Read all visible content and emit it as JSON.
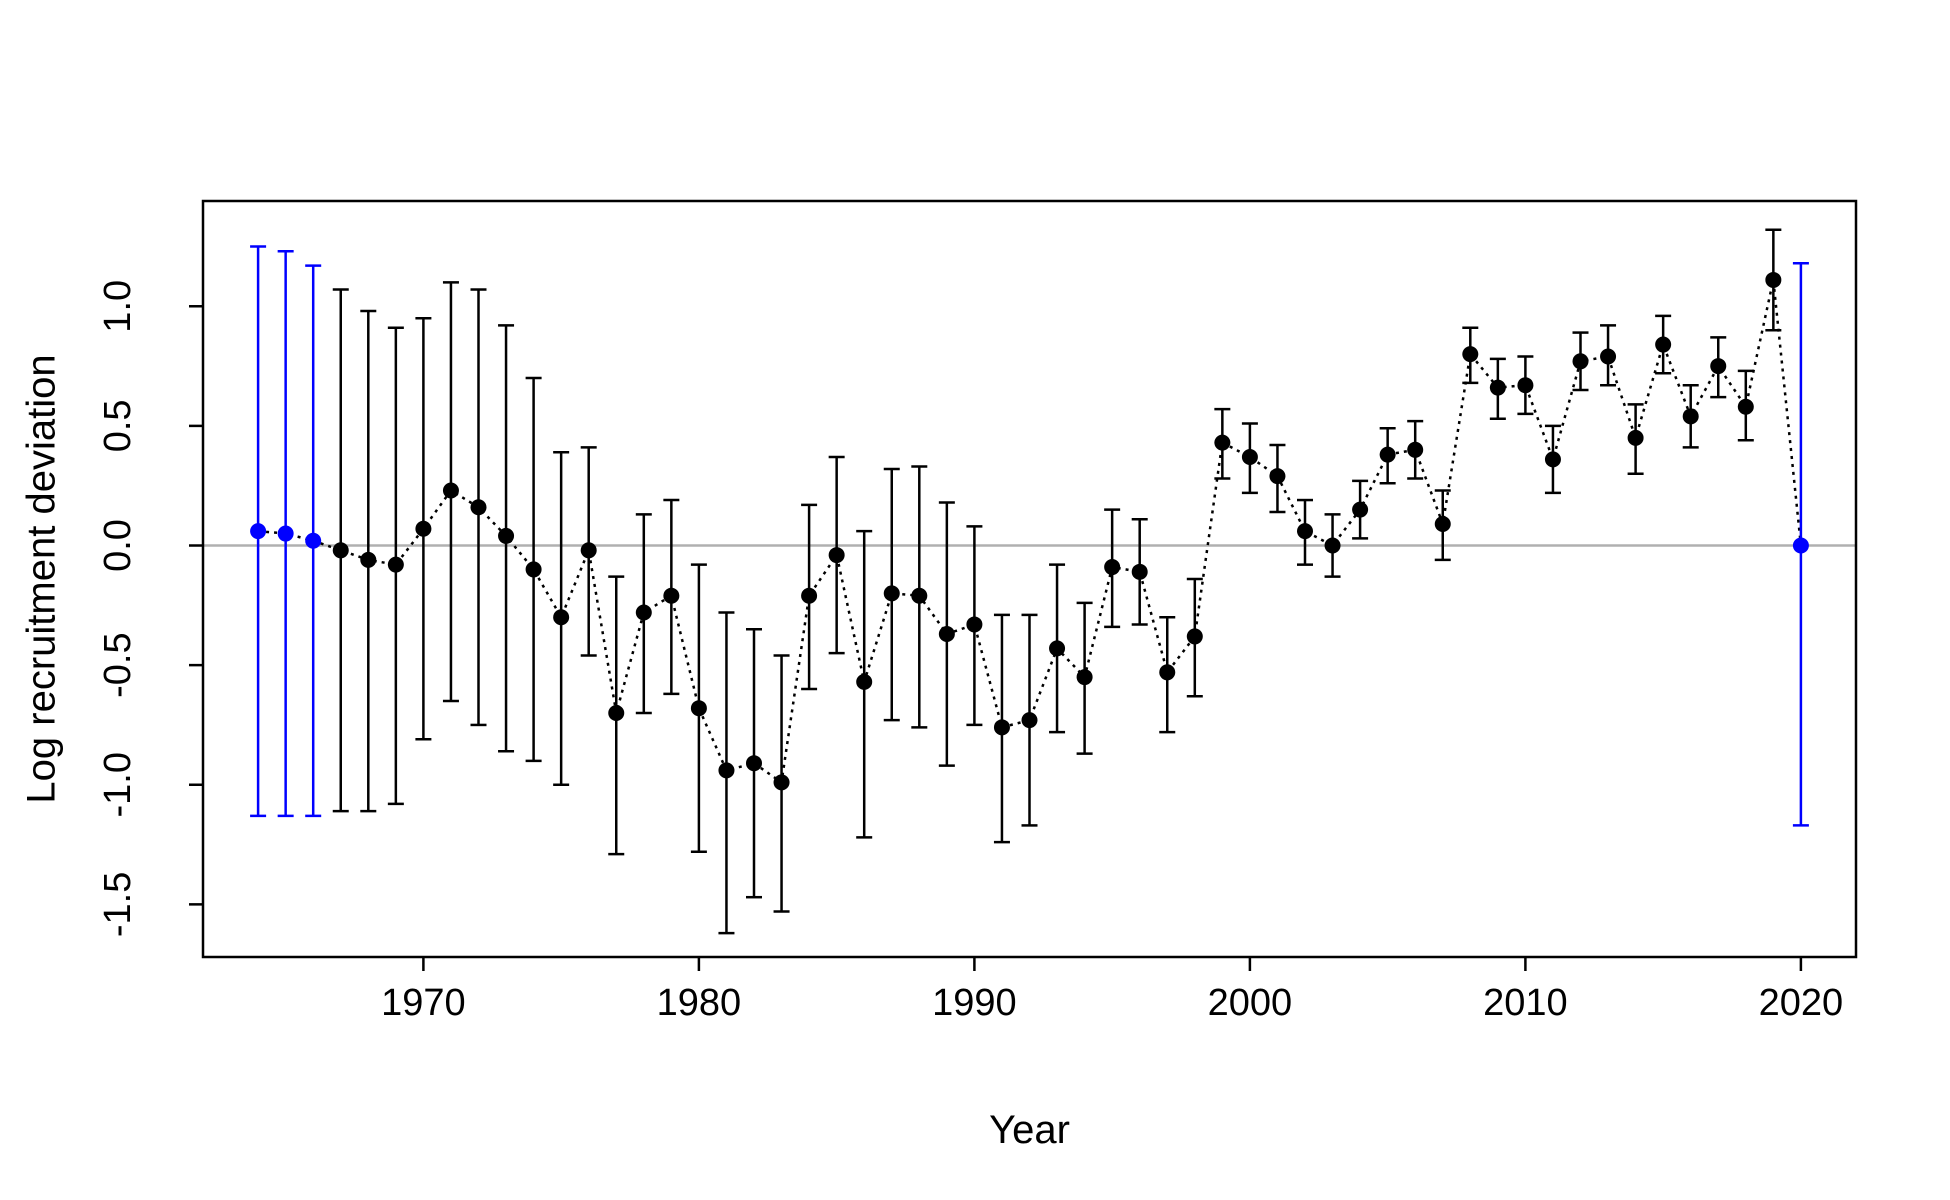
{
  "chart_data": {
    "type": "scatter",
    "title": "",
    "xlabel": "Year",
    "ylabel": "Log recruitment deviation",
    "xlim": [
      1962,
      2022
    ],
    "ylim": [
      -1.72,
      1.44
    ],
    "xticks": [
      1970,
      1980,
      1990,
      2000,
      2010,
      2020
    ],
    "yticks": [
      -1.5,
      -1.0,
      -0.5,
      0.0,
      0.5,
      1.0
    ],
    "xtick_labels": [
      "1970",
      "1980",
      "1990",
      "2000",
      "2010",
      "2020"
    ],
    "ytick_labels": [
      "-1.5",
      "-1.0",
      "-0.5",
      "0.0",
      "0.5",
      "1.0"
    ],
    "reference_line": 0,
    "grid": false,
    "colors": {
      "main": "#000000",
      "early_late": "#0000ff",
      "reference": "#b0b0b0"
    },
    "series": [
      {
        "name": "",
        "color": "#000000",
        "line": "dotted",
        "x": [
          1964,
          1965,
          1966,
          1967,
          1968,
          1969,
          1970,
          1971,
          1972,
          1973,
          1974,
          1975,
          1976,
          1977,
          1978,
          1979,
          1980,
          1981,
          1982,
          1983,
          1984,
          1985,
          1986,
          1987,
          1988,
          1989,
          1990,
          1991,
          1992,
          1993,
          1994,
          1995,
          1996,
          1997,
          1998,
          1999,
          2000,
          2001,
          2002,
          2003,
          2004,
          2005,
          2006,
          2007,
          2008,
          2009,
          2010,
          2011,
          2012,
          2013,
          2014,
          2015,
          2016,
          2017,
          2018,
          2019,
          2020
        ],
        "y": [
          0.06,
          0.05,
          0.02,
          -0.02,
          -0.06,
          -0.08,
          0.07,
          0.23,
          0.16,
          0.04,
          -0.1,
          -0.3,
          -0.02,
          -0.7,
          -0.28,
          -0.21,
          -0.68,
          -0.94,
          -0.91,
          -0.99,
          -0.21,
          -0.04,
          -0.57,
          -0.2,
          -0.21,
          -0.37,
          -0.33,
          -0.76,
          -0.73,
          -0.43,
          -0.55,
          -0.09,
          -0.11,
          -0.53,
          -0.38,
          0.43,
          0.37,
          0.29,
          0.06,
          0.0,
          0.15,
          0.38,
          0.4,
          0.09,
          0.8,
          0.66,
          0.67,
          0.36,
          0.77,
          0.79,
          0.45,
          0.84,
          0.54,
          0.75,
          0.58,
          1.11,
          0.0
        ]
      }
    ],
    "points": [
      {
        "x": 1964,
        "y": 0.06,
        "lo": -1.13,
        "hi": 1.25,
        "group": "blue"
      },
      {
        "x": 1965,
        "y": 0.05,
        "lo": -1.13,
        "hi": 1.23,
        "group": "blue"
      },
      {
        "x": 1966,
        "y": 0.02,
        "lo": -1.13,
        "hi": 1.17,
        "group": "blue"
      },
      {
        "x": 1967,
        "y": -0.02,
        "lo": -1.11,
        "hi": 1.07,
        "group": "black"
      },
      {
        "x": 1968,
        "y": -0.06,
        "lo": -1.11,
        "hi": 0.98,
        "group": "black"
      },
      {
        "x": 1969,
        "y": -0.08,
        "lo": -1.08,
        "hi": 0.91,
        "group": "black"
      },
      {
        "x": 1970,
        "y": 0.07,
        "lo": -0.81,
        "hi": 0.95,
        "group": "black"
      },
      {
        "x": 1971,
        "y": 0.23,
        "lo": -0.65,
        "hi": 1.1,
        "group": "black"
      },
      {
        "x": 1972,
        "y": 0.16,
        "lo": -0.75,
        "hi": 1.07,
        "group": "black"
      },
      {
        "x": 1973,
        "y": 0.04,
        "lo": -0.86,
        "hi": 0.92,
        "group": "black"
      },
      {
        "x": 1974,
        "y": -0.1,
        "lo": -0.9,
        "hi": 0.7,
        "group": "black"
      },
      {
        "x": 1975,
        "y": -0.3,
        "lo": -1.0,
        "hi": 0.39,
        "group": "black"
      },
      {
        "x": 1976,
        "y": -0.02,
        "lo": -0.46,
        "hi": 0.41,
        "group": "black"
      },
      {
        "x": 1977,
        "y": -0.7,
        "lo": -1.29,
        "hi": -0.13,
        "group": "black"
      },
      {
        "x": 1978,
        "y": -0.28,
        "lo": -0.7,
        "hi": 0.13,
        "group": "black"
      },
      {
        "x": 1979,
        "y": -0.21,
        "lo": -0.62,
        "hi": 0.19,
        "group": "black"
      },
      {
        "x": 1980,
        "y": -0.68,
        "lo": -1.28,
        "hi": -0.08,
        "group": "black"
      },
      {
        "x": 1981,
        "y": -0.94,
        "lo": -1.62,
        "hi": -0.28,
        "group": "black"
      },
      {
        "x": 1982,
        "y": -0.91,
        "lo": -1.47,
        "hi": -0.35,
        "group": "black"
      },
      {
        "x": 1983,
        "y": -0.99,
        "lo": -1.53,
        "hi": -0.46,
        "group": "black"
      },
      {
        "x": 1984,
        "y": -0.21,
        "lo": -0.6,
        "hi": 0.17,
        "group": "black"
      },
      {
        "x": 1985,
        "y": -0.04,
        "lo": -0.45,
        "hi": 0.37,
        "group": "black"
      },
      {
        "x": 1986,
        "y": -0.57,
        "lo": -1.22,
        "hi": 0.06,
        "group": "black"
      },
      {
        "x": 1987,
        "y": -0.2,
        "lo": -0.73,
        "hi": 0.32,
        "group": "black"
      },
      {
        "x": 1988,
        "y": -0.21,
        "lo": -0.76,
        "hi": 0.33,
        "group": "black"
      },
      {
        "x": 1989,
        "y": -0.37,
        "lo": -0.92,
        "hi": 0.18,
        "group": "black"
      },
      {
        "x": 1990,
        "y": -0.33,
        "lo": -0.75,
        "hi": 0.08,
        "group": "black"
      },
      {
        "x": 1991,
        "y": -0.76,
        "lo": -1.24,
        "hi": -0.29,
        "group": "black"
      },
      {
        "x": 1992,
        "y": -0.73,
        "lo": -1.17,
        "hi": -0.29,
        "group": "black"
      },
      {
        "x": 1993,
        "y": -0.43,
        "lo": -0.78,
        "hi": -0.08,
        "group": "black"
      },
      {
        "x": 1994,
        "y": -0.55,
        "lo": -0.87,
        "hi": -0.24,
        "group": "black"
      },
      {
        "x": 1995,
        "y": -0.09,
        "lo": -0.34,
        "hi": 0.15,
        "group": "black"
      },
      {
        "x": 1996,
        "y": -0.11,
        "lo": -0.33,
        "hi": 0.11,
        "group": "black"
      },
      {
        "x": 1997,
        "y": -0.53,
        "lo": -0.78,
        "hi": -0.3,
        "group": "black"
      },
      {
        "x": 1998,
        "y": -0.38,
        "lo": -0.63,
        "hi": -0.14,
        "group": "black"
      },
      {
        "x": 1999,
        "y": 0.43,
        "lo": 0.28,
        "hi": 0.57,
        "group": "black"
      },
      {
        "x": 2000,
        "y": 0.37,
        "lo": 0.22,
        "hi": 0.51,
        "group": "black"
      },
      {
        "x": 2001,
        "y": 0.29,
        "lo": 0.14,
        "hi": 0.42,
        "group": "black"
      },
      {
        "x": 2002,
        "y": 0.06,
        "lo": -0.08,
        "hi": 0.19,
        "group": "black"
      },
      {
        "x": 2003,
        "y": 0.0,
        "lo": -0.13,
        "hi": 0.13,
        "group": "black"
      },
      {
        "x": 2004,
        "y": 0.15,
        "lo": 0.03,
        "hi": 0.27,
        "group": "black"
      },
      {
        "x": 2005,
        "y": 0.38,
        "lo": 0.26,
        "hi": 0.49,
        "group": "black"
      },
      {
        "x": 2006,
        "y": 0.4,
        "lo": 0.28,
        "hi": 0.52,
        "group": "black"
      },
      {
        "x": 2007,
        "y": 0.09,
        "lo": -0.06,
        "hi": 0.23,
        "group": "black"
      },
      {
        "x": 2008,
        "y": 0.8,
        "lo": 0.68,
        "hi": 0.91,
        "group": "black"
      },
      {
        "x": 2009,
        "y": 0.66,
        "lo": 0.53,
        "hi": 0.78,
        "group": "black"
      },
      {
        "x": 2010,
        "y": 0.67,
        "lo": 0.55,
        "hi": 0.79,
        "group": "black"
      },
      {
        "x": 2011,
        "y": 0.36,
        "lo": 0.22,
        "hi": 0.5,
        "group": "black"
      },
      {
        "x": 2012,
        "y": 0.77,
        "lo": 0.65,
        "hi": 0.89,
        "group": "black"
      },
      {
        "x": 2013,
        "y": 0.79,
        "lo": 0.67,
        "hi": 0.92,
        "group": "black"
      },
      {
        "x": 2014,
        "y": 0.45,
        "lo": 0.3,
        "hi": 0.59,
        "group": "black"
      },
      {
        "x": 2015,
        "y": 0.84,
        "lo": 0.72,
        "hi": 0.96,
        "group": "black"
      },
      {
        "x": 2016,
        "y": 0.54,
        "lo": 0.41,
        "hi": 0.67,
        "group": "black"
      },
      {
        "x": 2017,
        "y": 0.75,
        "lo": 0.62,
        "hi": 0.87,
        "group": "black"
      },
      {
        "x": 2018,
        "y": 0.58,
        "lo": 0.44,
        "hi": 0.73,
        "group": "black"
      },
      {
        "x": 2019,
        "y": 1.11,
        "lo": 0.9,
        "hi": 1.32,
        "group": "black"
      },
      {
        "x": 2020,
        "y": 0.0,
        "lo": -1.17,
        "hi": 1.18,
        "group": "blue"
      }
    ]
  }
}
